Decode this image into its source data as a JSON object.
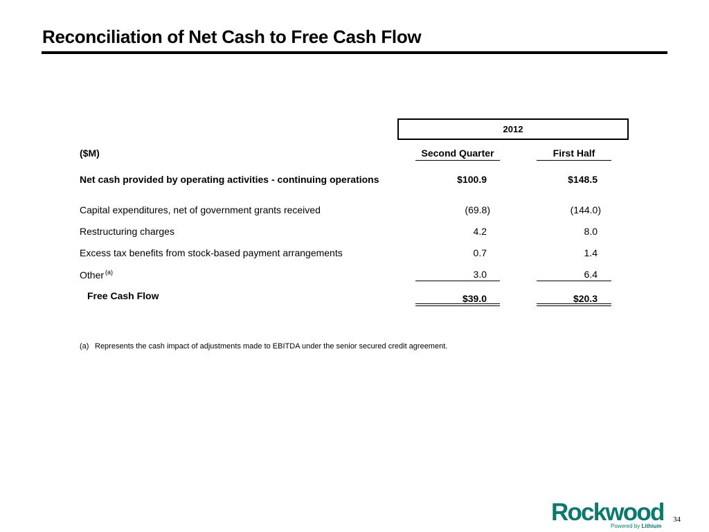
{
  "slide": {
    "title": "Reconciliation of Net Cash to Free Cash Flow",
    "page_number": "34"
  },
  "table": {
    "year": "2012",
    "unit_label": "($M)",
    "columns": [
      "Second Quarter",
      "First Half"
    ],
    "rows": [
      {
        "label": "Net cash provided by operating activities - continuing operations",
        "values": [
          "$100.9",
          "$148.5"
        ],
        "bold": true
      },
      {
        "label": "Capital expenditures, net of government grants received",
        "values": [
          "(69.8)",
          "(144.0)"
        ]
      },
      {
        "label": "Restructuring charges",
        "values": [
          "4.2",
          "8.0"
        ]
      },
      {
        "label": "Excess tax benefits from stock-based payment arrangements",
        "values": [
          "0.7",
          "1.4"
        ]
      },
      {
        "label": "Other",
        "note": "(a)",
        "values": [
          "3.0",
          "6.4"
        ]
      }
    ],
    "total": {
      "label": "Free Cash Flow",
      "values": [
        "$39.0",
        "$20.3"
      ]
    }
  },
  "footnote": {
    "marker": "(a)",
    "text": "Represents the cash impact of adjustments made to EBITDA under the senior secured credit agreement."
  },
  "logo": {
    "wordmark": "Rockwood",
    "tagline_prefix": "Powered by",
    "tagline_bold": "Lithium",
    "color": "#0a7a6e"
  }
}
